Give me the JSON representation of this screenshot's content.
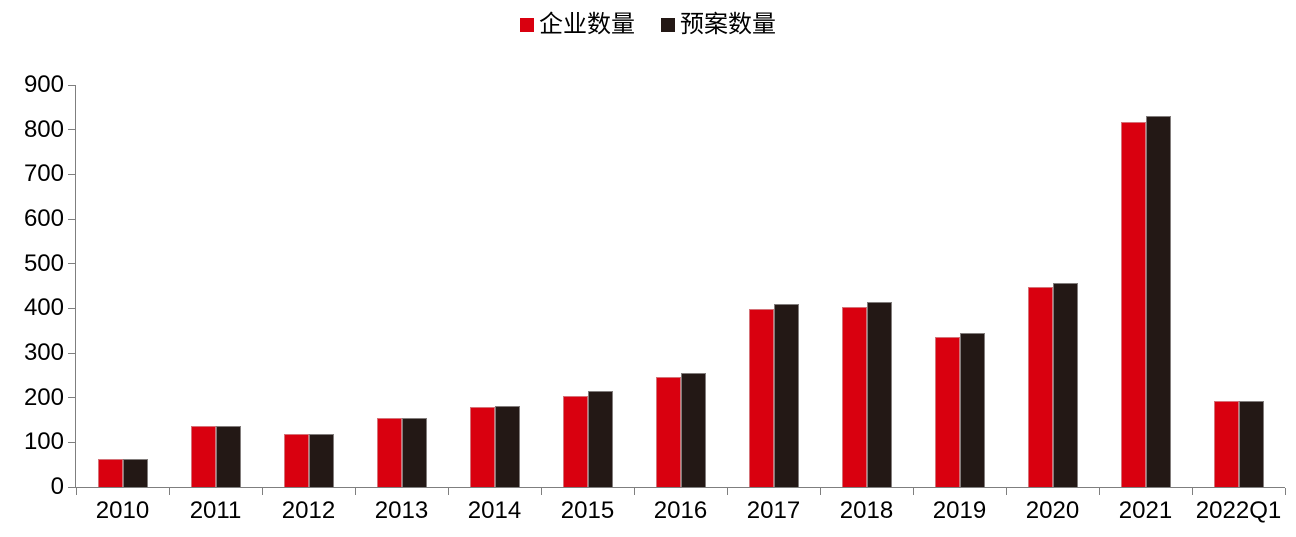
{
  "chart_data": {
    "type": "bar",
    "title": "",
    "xlabel": "",
    "ylabel": "",
    "categories": [
      "2010",
      "2011",
      "2012",
      "2013",
      "2014",
      "2015",
      "2016",
      "2017",
      "2018",
      "2019",
      "2020",
      "2021",
      "2022Q1"
    ],
    "series": [
      {
        "name": "企业数量",
        "color": "#d9000f",
        "values": [
          62,
          136,
          119,
          155,
          180,
          203,
          247,
          398,
          404,
          336,
          447,
          817,
          192
        ]
      },
      {
        "name": "预案数量",
        "color": "#231815",
        "values": [
          63,
          136,
          119,
          155,
          182,
          215,
          255,
          410,
          414,
          345,
          456,
          831,
          193
        ]
      }
    ],
    "ylim": [
      0,
      900
    ],
    "ytick_step": 100,
    "grid": false,
    "legend_position": "top-center"
  },
  "style": {
    "axis_color": "#7f7f7f",
    "text_color": "#000000",
    "background": "#ffffff"
  }
}
